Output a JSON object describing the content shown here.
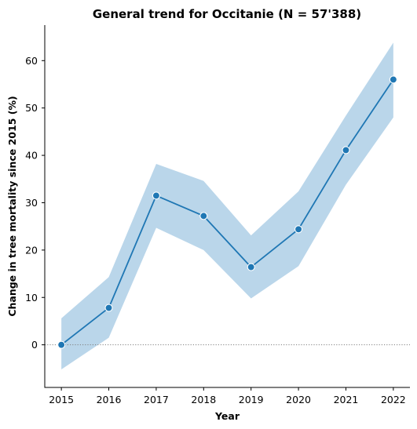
{
  "chart_data": {
    "type": "line",
    "title": "General trend for Occitanie  (N = 57'388)",
    "xlabel": "Year",
    "ylabel": "Change in tree mortality since 2015 (%)",
    "x": [
      2015,
      2016,
      2017,
      2018,
      2019,
      2020,
      2021,
      2022
    ],
    "series": [
      {
        "values": [
          0,
          7.8,
          31.5,
          27.2,
          16.4,
          24.4,
          41.1,
          56.0
        ],
        "ci_lower": [
          -5.2,
          1.5,
          24.7,
          20.0,
          9.8,
          16.6,
          33.8,
          48.0
        ],
        "ci_upper": [
          5.6,
          14.3,
          38.2,
          34.6,
          23.1,
          32.4,
          48.4,
          63.8
        ]
      }
    ],
    "xlim": [
      2014.65,
      2022.35
    ],
    "ylim": [
      -9,
      67.5
    ],
    "yticks": [
      0,
      10,
      20,
      30,
      40,
      50,
      60
    ],
    "reference_line": 0,
    "grid": false,
    "colors": {
      "line": "#1f77b4",
      "band": "#bad6ea",
      "marker_edge": "#ffffff",
      "reference": "#808080"
    }
  }
}
